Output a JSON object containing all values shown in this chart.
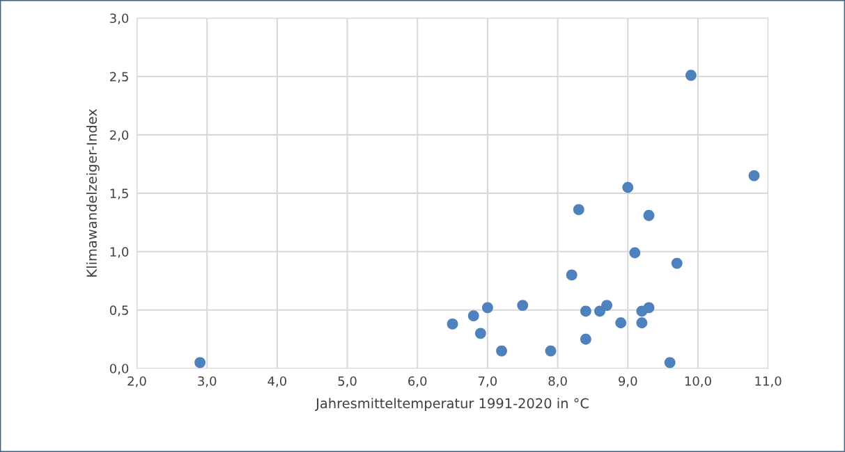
{
  "chart_data": {
    "type": "scatter",
    "xlabel": "Jahresmitteltemperatur 1991-2020 in °C",
    "ylabel": "Klimawandelzeiger-Index",
    "series": [
      {
        "color": "#4f81bd",
        "x": [
          2.9,
          6.5,
          6.8,
          6.9,
          7.0,
          7.2,
          7.5,
          7.9,
          8.2,
          8.3,
          8.4,
          8.4,
          8.6,
          8.7,
          8.9,
          9.0,
          9.1,
          9.2,
          9.2,
          9.3,
          9.3,
          9.7,
          9.6,
          9.9,
          10.8
        ],
        "values": [
          0.05,
          0.38,
          0.45,
          0.3,
          0.52,
          0.15,
          0.54,
          0.15,
          0.8,
          1.36,
          0.49,
          0.25,
          0.49,
          0.54,
          0.39,
          1.55,
          0.99,
          0.49,
          0.39,
          0.52,
          1.31,
          0.9,
          0.05,
          2.51,
          1.65
        ]
      }
    ],
    "xlim": [
      2.0,
      11.0
    ],
    "xticks": [
      {
        "value": 2,
        "label": "2,0"
      },
      {
        "value": 3,
        "label": "3,0"
      },
      {
        "value": 4,
        "label": "4,0"
      },
      {
        "value": 5,
        "label": "5,0"
      },
      {
        "value": 6,
        "label": "6,0"
      },
      {
        "value": 7,
        "label": "7,0"
      },
      {
        "value": 8,
        "label": "8,0"
      },
      {
        "value": 9,
        "label": "9,0"
      },
      {
        "value": 10,
        "label": "10,0"
      },
      {
        "value": 11,
        "label": "11,0"
      }
    ],
    "ylim": [
      0,
      3.0
    ],
    "yticks": [
      {
        "value": 0,
        "label": "0,0"
      },
      {
        "value": 0.5,
        "label": "0,5"
      },
      {
        "value": 1.0,
        "label": "1,0"
      },
      {
        "value": 1.5,
        "label": "1,5"
      },
      {
        "value": 2.0,
        "label": "2,0"
      },
      {
        "value": 2.5,
        "label": "2,5"
      },
      {
        "value": 3.0,
        "label": "3,0"
      }
    ],
    "grid": true,
    "marker": "circle"
  }
}
